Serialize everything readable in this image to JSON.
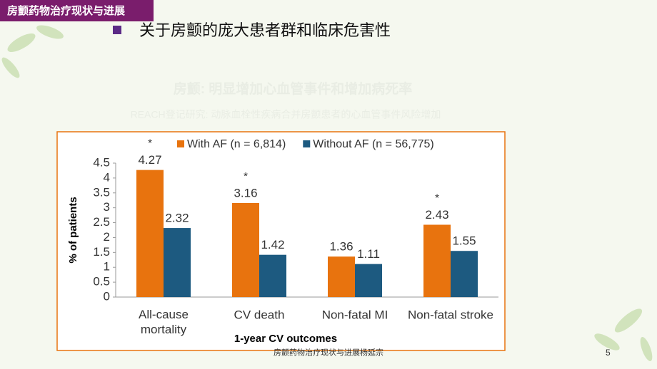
{
  "header": {
    "title": "房颤药物治疗现状与进展"
  },
  "heading": "关于房颤的庞大患者群和临床危害性",
  "faded_title": "房颤: 明显增加心血管事件和增加病死率",
  "faded_subtitle": "REACH登记研究: 动脉血栓性疾病合并房颤患者的心血管事件风险增加",
  "chart_data": {
    "type": "bar",
    "categories": [
      "All-cause mortality",
      "CV death",
      "Non-fatal MI",
      "Non-fatal stroke"
    ],
    "significance": [
      "*",
      "*",
      null,
      "*"
    ],
    "series": [
      {
        "name": "With AF (n = 6,814)",
        "color": "#e8730e",
        "values": [
          4.27,
          3.16,
          1.36,
          2.43
        ]
      },
      {
        "name": "Without AF (n = 56,775)",
        "color": "#1d5a80",
        "values": [
          2.32,
          1.42,
          1.11,
          1.55
        ]
      }
    ],
    "xlabel": "1-year CV outcomes",
    "ylabel": "% of patients",
    "ylim": [
      0,
      4.5
    ],
    "yticks": [
      0,
      0.5,
      1,
      1.5,
      2,
      2.5,
      3,
      3.5,
      4,
      4.5
    ],
    "legend": "top"
  },
  "footer": {
    "text": "房颤药物治疗现状与进展杨延宗",
    "page_number": 5
  }
}
